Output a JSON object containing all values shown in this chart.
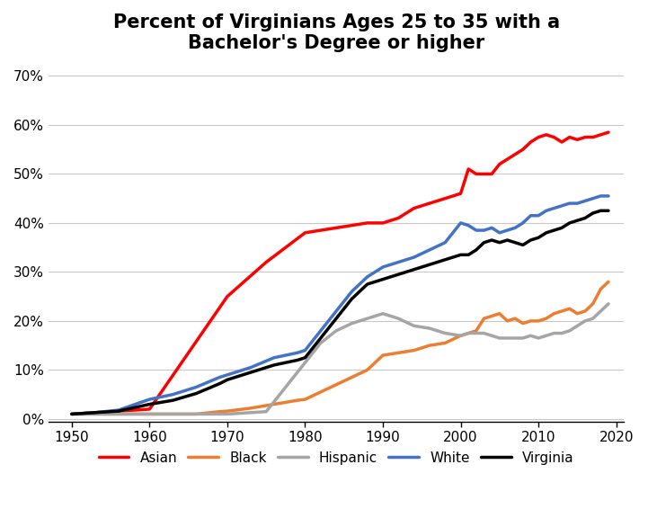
{
  "title": "Percent of Virginians Ages 25 to 35 with a\nBachelor's Degree or higher",
  "xlim": [
    1947,
    2021
  ],
  "ylim": [
    -0.005,
    0.73
  ],
  "yticks": [
    0.0,
    0.1,
    0.2,
    0.3,
    0.4,
    0.5,
    0.6,
    0.7
  ],
  "xticks": [
    1950,
    1960,
    1970,
    1980,
    1990,
    2000,
    2010,
    2020
  ],
  "series": {
    "Asian": {
      "color": "#FF0000",
      "x": [
        1950,
        1960,
        1970,
        1975,
        1980,
        1982,
        1984,
        1986,
        1988,
        1990,
        1992,
        1994,
        1996,
        1998,
        2000,
        2001,
        2002,
        2003,
        2004,
        2005,
        2006,
        2007,
        2008,
        2009,
        2010,
        2011,
        2012,
        2013,
        2014,
        2015,
        2016,
        2017,
        2018,
        2019
      ],
      "y": [
        0.01,
        0.02,
        0.25,
        0.32,
        0.38,
        0.385,
        0.39,
        0.395,
        0.4,
        0.4,
        0.41,
        0.43,
        0.44,
        0.45,
        0.46,
        0.51,
        0.5,
        0.5,
        0.5,
        0.52,
        0.53,
        0.54,
        0.55,
        0.565,
        0.575,
        0.58,
        0.575,
        0.565,
        0.575,
        0.57,
        0.575,
        0.575,
        0.58,
        0.585
      ]
    },
    "Black": {
      "color": "#ED7D31",
      "x": [
        1950,
        1953,
        1956,
        1960,
        1963,
        1966,
        1969,
        1970,
        1973,
        1976,
        1979,
        1980,
        1982,
        1984,
        1986,
        1988,
        1990,
        1992,
        1994,
        1996,
        1998,
        2000,
        2001,
        2002,
        2003,
        2004,
        2005,
        2006,
        2007,
        2008,
        2009,
        2010,
        2011,
        2012,
        2013,
        2014,
        2015,
        2016,
        2017,
        2018,
        2019
      ],
      "y": [
        0.01,
        0.01,
        0.01,
        0.01,
        0.01,
        0.01,
        0.015,
        0.016,
        0.022,
        0.03,
        0.038,
        0.04,
        0.055,
        0.07,
        0.085,
        0.1,
        0.13,
        0.135,
        0.14,
        0.15,
        0.155,
        0.17,
        0.175,
        0.18,
        0.205,
        0.21,
        0.215,
        0.2,
        0.205,
        0.195,
        0.2,
        0.2,
        0.205,
        0.215,
        0.22,
        0.225,
        0.215,
        0.22,
        0.235,
        0.265,
        0.28
      ]
    },
    "Hispanic": {
      "color": "#A5A5A5",
      "x": [
        1950,
        1960,
        1970,
        1975,
        1980,
        1982,
        1984,
        1986,
        1988,
        1990,
        1992,
        1994,
        1996,
        1998,
        2000,
        2001,
        2002,
        2003,
        2004,
        2005,
        2006,
        2007,
        2008,
        2009,
        2010,
        2011,
        2012,
        2013,
        2014,
        2015,
        2016,
        2017,
        2018,
        2019
      ],
      "y": [
        0.01,
        0.01,
        0.01,
        0.015,
        0.115,
        0.155,
        0.18,
        0.195,
        0.205,
        0.215,
        0.205,
        0.19,
        0.185,
        0.175,
        0.17,
        0.175,
        0.175,
        0.175,
        0.17,
        0.165,
        0.165,
        0.165,
        0.165,
        0.17,
        0.165,
        0.17,
        0.175,
        0.175,
        0.18,
        0.19,
        0.2,
        0.205,
        0.22,
        0.235
      ]
    },
    "White": {
      "color": "#4472C4",
      "x": [
        1950,
        1953,
        1956,
        1960,
        1963,
        1966,
        1969,
        1970,
        1973,
        1976,
        1979,
        1980,
        1982,
        1984,
        1986,
        1988,
        1990,
        1992,
        1994,
        1996,
        1998,
        2000,
        2001,
        2002,
        2003,
        2004,
        2005,
        2006,
        2007,
        2008,
        2009,
        2010,
        2011,
        2012,
        2013,
        2014,
        2015,
        2016,
        2017,
        2018,
        2019
      ],
      "y": [
        0.01,
        0.013,
        0.018,
        0.04,
        0.05,
        0.065,
        0.085,
        0.09,
        0.105,
        0.125,
        0.135,
        0.14,
        0.18,
        0.22,
        0.26,
        0.29,
        0.31,
        0.32,
        0.33,
        0.345,
        0.36,
        0.4,
        0.395,
        0.385,
        0.385,
        0.39,
        0.38,
        0.385,
        0.39,
        0.4,
        0.415,
        0.415,
        0.425,
        0.43,
        0.435,
        0.44,
        0.44,
        0.445,
        0.45,
        0.455,
        0.455
      ]
    },
    "Virginia": {
      "color": "#000000",
      "x": [
        1950,
        1953,
        1956,
        1960,
        1963,
        1966,
        1969,
        1970,
        1973,
        1976,
        1979,
        1980,
        1982,
        1984,
        1986,
        1988,
        1990,
        1992,
        1994,
        1996,
        1998,
        2000,
        2001,
        2002,
        2003,
        2004,
        2005,
        2006,
        2007,
        2008,
        2009,
        2010,
        2011,
        2012,
        2013,
        2014,
        2015,
        2016,
        2017,
        2018,
        2019
      ],
      "y": [
        0.01,
        0.013,
        0.016,
        0.03,
        0.038,
        0.052,
        0.072,
        0.08,
        0.095,
        0.11,
        0.12,
        0.125,
        0.165,
        0.205,
        0.245,
        0.275,
        0.285,
        0.295,
        0.305,
        0.315,
        0.325,
        0.335,
        0.335,
        0.345,
        0.36,
        0.365,
        0.36,
        0.365,
        0.36,
        0.355,
        0.365,
        0.37,
        0.38,
        0.385,
        0.39,
        0.4,
        0.405,
        0.41,
        0.42,
        0.425,
        0.425
      ]
    }
  },
  "legend_order": [
    "Asian",
    "Black",
    "Hispanic",
    "White",
    "Virginia"
  ],
  "title_fontsize": 15,
  "tick_fontsize": 11,
  "legend_fontsize": 11,
  "line_width": 2.5,
  "background_color": "#FFFFFF",
  "grid_color": "#C8C8C8"
}
